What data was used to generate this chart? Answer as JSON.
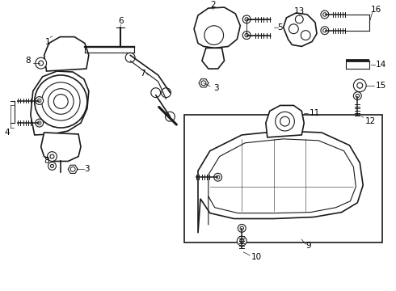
{
  "background_color": "#ffffff",
  "line_color": "#1a1a1a",
  "fig_width": 4.9,
  "fig_height": 3.6,
  "dpi": 100,
  "font_size": 7.5
}
